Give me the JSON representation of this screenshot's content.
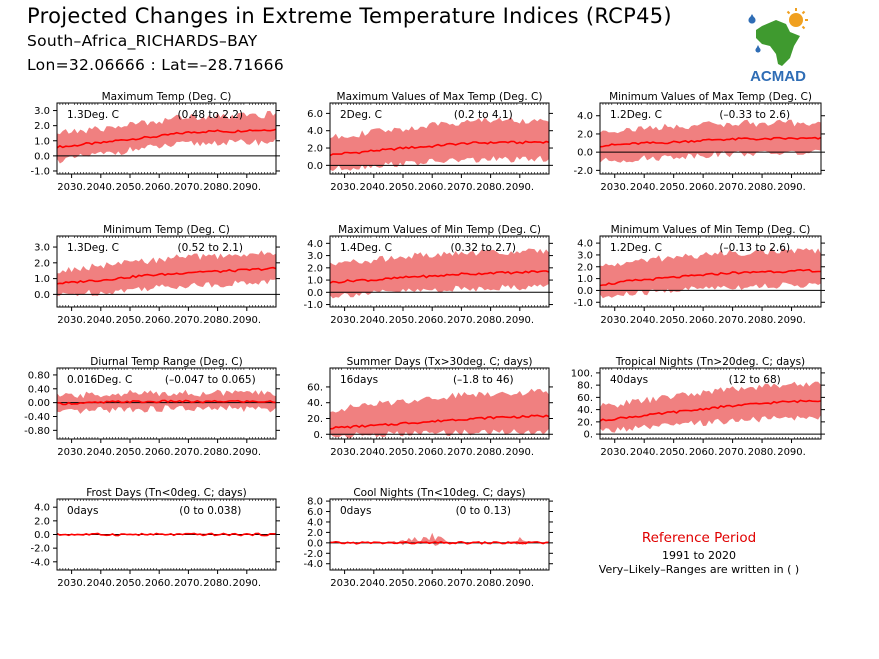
{
  "header": {
    "title": "Projected Changes in Extreme Temperature Indices (RCP45)",
    "station": "South–Africa_RICHARDS–BAY",
    "coords": "Lon=32.06666 : Lat=–28.71666"
  },
  "logo": {
    "text": "ACMAD",
    "icon": "africa-map-logo-icon"
  },
  "reference": {
    "title": "Reference Period",
    "years": "1991 to 2020",
    "note": "Very–Likely–Ranges are written in ( )"
  },
  "colors": {
    "band": "#f08080",
    "line": "#ff0000",
    "logo_text": "#2f6db5",
    "logo_green": "#3f9a2f",
    "logo_orange": "#f0a020",
    "reference_title": "#e00000"
  },
  "chart_data": [
    {
      "type": "area",
      "title": "Maximum Temp (Deg. C)",
      "value_label": "1.3Deg. C",
      "range_label": "(0.48 to 2.2)",
      "x_range": [
        2025,
        2100
      ],
      "x_ticks": [
        "2030.",
        "2040.",
        "2050.",
        "2060.",
        "2070.",
        "2080.",
        "2090."
      ],
      "ylim": [
        -1.2,
        3.5
      ],
      "y_ticks": [
        "3.0",
        "2.0",
        "1.0",
        "0.0",
        "-1.0"
      ],
      "y_tick_values": [
        3,
        2,
        1,
        0,
        -1
      ],
      "series": [
        {
          "name": "median",
          "x_start": 2025,
          "x_end": 2100,
          "values": [
            0.6,
            0.65,
            0.8,
            0.85,
            1.0,
            1.1,
            1.2,
            1.3,
            1.45,
            1.55,
            1.6,
            1.65,
            1.6,
            1.7,
            1.7,
            1.75
          ]
        },
        {
          "name": "range-low",
          "values": [
            -0.3,
            -0.2,
            0.0,
            0.1,
            0.2,
            0.4,
            0.5,
            0.6,
            0.7,
            0.8,
            0.8,
            0.9,
            0.85,
            0.9,
            0.9,
            0.95
          ]
        },
        {
          "name": "range-high",
          "values": [
            1.5,
            1.6,
            1.7,
            1.8,
            1.9,
            2.1,
            2.2,
            2.3,
            2.5,
            2.6,
            2.6,
            2.7,
            2.6,
            2.7,
            2.7,
            2.8
          ]
        }
      ]
    },
    {
      "type": "area",
      "title": "Maximum Values of Max Temp (Deg. C)",
      "value_label": "2Deg. C",
      "range_label": "(0.2 to 4.1)",
      "x_range": [
        2025,
        2100
      ],
      "x_ticks": [
        "2030.",
        "2040.",
        "2050.",
        "2060.",
        "2070.",
        "2080.",
        "2090."
      ],
      "ylim": [
        -1.0,
        7.2
      ],
      "y_ticks": [
        "6.0",
        "4.0",
        "2.0",
        "0.0"
      ],
      "y_tick_values": [
        6,
        4,
        2,
        0
      ],
      "series": [
        {
          "name": "median",
          "x_start": 2025,
          "x_end": 2100,
          "values": [
            1.2,
            1.4,
            1.5,
            1.7,
            1.8,
            2.0,
            2.1,
            2.2,
            2.4,
            2.5,
            2.6,
            2.6,
            2.7,
            2.6,
            2.7,
            2.7
          ]
        },
        {
          "name": "range-low",
          "values": [
            -0.5,
            -0.3,
            -0.2,
            0.0,
            0.1,
            0.2,
            0.3,
            0.4,
            0.5,
            0.6,
            0.6,
            0.7,
            0.7,
            0.6,
            0.7,
            0.8
          ]
        },
        {
          "name": "range-high",
          "values": [
            3.2,
            3.5,
            3.6,
            3.9,
            4.0,
            4.2,
            4.4,
            4.6,
            4.9,
            5.0,
            5.2,
            5.2,
            5.4,
            5.1,
            5.2,
            5.2
          ]
        }
      ]
    },
    {
      "type": "area",
      "title": "Minimum Values of Max Temp (Deg. C)",
      "value_label": "1.2Deg. C",
      "range_label": "(–0.33 to 2.6)",
      "x_range": [
        2025,
        2100
      ],
      "x_ticks": [
        "2030.",
        "2040.",
        "2050.",
        "2060.",
        "2070.",
        "2080.",
        "2090."
      ],
      "ylim": [
        -2.4,
        5.4
      ],
      "y_ticks": [
        "4.0",
        "2.0",
        "0.0",
        "-2.0"
      ],
      "y_tick_values": [
        4,
        2,
        0,
        -2
      ],
      "series": [
        {
          "name": "median",
          "x_start": 2025,
          "x_end": 2100,
          "values": [
            0.7,
            0.8,
            0.9,
            1.0,
            1.0,
            1.1,
            1.2,
            1.3,
            1.4,
            1.4,
            1.5,
            1.4,
            1.5,
            1.5,
            1.5,
            1.5
          ]
        },
        {
          "name": "range-low",
          "values": [
            -1.0,
            -0.9,
            -0.8,
            -0.7,
            -0.6,
            -0.5,
            -0.4,
            -0.3,
            -0.2,
            -0.2,
            -0.1,
            -0.2,
            -0.1,
            -0.1,
            -0.1,
            -0.1
          ]
        },
        {
          "name": "range-high",
          "values": [
            2.3,
            2.4,
            2.5,
            2.6,
            2.7,
            2.8,
            2.9,
            3.0,
            3.1,
            3.1,
            3.2,
            3.1,
            3.2,
            3.2,
            3.2,
            3.2
          ]
        }
      ]
    },
    {
      "type": "area",
      "title": "Minimum Temp (Deg. C)",
      "value_label": "1.3Deg. C",
      "range_label": "(0.52 to 2.1)",
      "x_range": [
        2025,
        2100
      ],
      "x_ticks": [
        "2030.",
        "2040.",
        "2050.",
        "2060.",
        "2070.",
        "2080.",
        "2090."
      ],
      "ylim": [
        -0.8,
        3.7
      ],
      "y_ticks": [
        "3.0",
        "2.0",
        "1.0",
        "0.0"
      ],
      "y_tick_values": [
        3,
        2,
        1,
        0
      ],
      "series": [
        {
          "name": "median",
          "x_start": 2025,
          "x_end": 2100,
          "values": [
            0.7,
            0.75,
            0.85,
            0.9,
            1.0,
            1.1,
            1.2,
            1.25,
            1.3,
            1.4,
            1.45,
            1.45,
            1.5,
            1.55,
            1.6,
            1.65
          ]
        },
        {
          "name": "range-low",
          "values": [
            -0.1,
            0.0,
            0.1,
            0.1,
            0.2,
            0.3,
            0.4,
            0.45,
            0.5,
            0.6,
            0.6,
            0.6,
            0.7,
            0.7,
            0.8,
            0.8
          ]
        },
        {
          "name": "range-high",
          "values": [
            1.4,
            1.6,
            1.7,
            1.8,
            1.9,
            2.0,
            2.1,
            2.2,
            2.3,
            2.4,
            2.4,
            2.4,
            2.5,
            2.5,
            2.6,
            2.6
          ]
        }
      ]
    },
    {
      "type": "area",
      "title": "Maximum Values of Min Temp (Deg. C)",
      "value_label": "1.4Deg. C",
      "range_label": "(0.32 to 2.7)",
      "x_range": [
        2025,
        2100
      ],
      "x_ticks": [
        "2030.",
        "2040.",
        "2050.",
        "2060.",
        "2070.",
        "2080.",
        "2090."
      ],
      "ylim": [
        -1.2,
        4.6
      ],
      "y_ticks": [
        "4.0",
        "3.0",
        "2.0",
        "1.0",
        "0.0",
        "-1.0"
      ],
      "y_tick_values": [
        4,
        3,
        2,
        1,
        0,
        -1
      ],
      "series": [
        {
          "name": "median",
          "x_start": 2025,
          "x_end": 2100,
          "values": [
            0.8,
            0.9,
            1.0,
            1.0,
            1.1,
            1.2,
            1.3,
            1.3,
            1.4,
            1.5,
            1.5,
            1.6,
            1.6,
            1.6,
            1.7,
            1.7
          ]
        },
        {
          "name": "range-low",
          "values": [
            -0.3,
            -0.2,
            -0.1,
            -0.1,
            0.0,
            0.1,
            0.1,
            0.2,
            0.2,
            0.3,
            0.3,
            0.4,
            0.4,
            0.4,
            0.5,
            0.5
          ]
        },
        {
          "name": "range-high",
          "values": [
            2.2,
            2.4,
            2.6,
            2.6,
            2.8,
            2.9,
            3.0,
            3.0,
            3.1,
            3.2,
            3.2,
            3.3,
            3.3,
            3.3,
            3.4,
            3.4
          ]
        }
      ]
    },
    {
      "type": "area",
      "title": "Minimum Values of Min Temp (Deg. C)",
      "value_label": "1.2Deg. C",
      "range_label": "(–0.13 to 2.6)",
      "x_range": [
        2025,
        2100
      ],
      "x_ticks": [
        "2030.",
        "2040.",
        "2050.",
        "2060.",
        "2070.",
        "2080.",
        "2090."
      ],
      "ylim": [
        -1.4,
        4.6
      ],
      "y_ticks": [
        "4.0",
        "3.0",
        "2.0",
        "1.0",
        "0.0",
        "-1.0"
      ],
      "y_tick_values": [
        4,
        3,
        2,
        1,
        0,
        -1
      ],
      "series": [
        {
          "name": "median",
          "x_start": 2025,
          "x_end": 2100,
          "values": [
            0.5,
            0.6,
            0.8,
            0.9,
            1.0,
            1.1,
            1.2,
            1.3,
            1.4,
            1.5,
            1.5,
            1.6,
            1.6,
            1.6,
            1.7,
            1.6
          ]
        },
        {
          "name": "range-low",
          "values": [
            -0.6,
            -0.5,
            -0.3,
            -0.2,
            -0.1,
            0.0,
            0.1,
            0.2,
            0.3,
            0.3,
            0.3,
            0.4,
            0.4,
            0.4,
            0.5,
            0.4
          ]
        },
        {
          "name": "range-high",
          "values": [
            2.0,
            2.2,
            2.4,
            2.5,
            2.7,
            2.8,
            2.9,
            3.0,
            3.1,
            3.2,
            3.2,
            3.3,
            3.3,
            3.3,
            3.4,
            3.3
          ]
        }
      ]
    },
    {
      "type": "area",
      "title": "Diurnal Temp Range (Deg. C)",
      "value_label": "0.016Deg. C",
      "range_label": "(–0.047 to 0.065)",
      "x_range": [
        2025,
        2100
      ],
      "x_ticks": [
        "2030.",
        "2040.",
        "2050.",
        "2060.",
        "2070.",
        "2080.",
        "2090."
      ],
      "ylim": [
        -1.05,
        1.0
      ],
      "y_ticks": [
        "0.80",
        "0.40",
        "0.00",
        "-0.40",
        "-0.80"
      ],
      "y_tick_values": [
        0.8,
        0.4,
        0,
        -0.4,
        -0.8
      ],
      "series": [
        {
          "name": "median",
          "x_start": 2025,
          "x_end": 2100,
          "values": [
            -0.03,
            -0.02,
            -0.01,
            0.0,
            0.02,
            0.03,
            0.02,
            0.03,
            0.04,
            0.03,
            0.02,
            0.03,
            0.04,
            0.03,
            0.03,
            0.02
          ]
        },
        {
          "name": "range-low",
          "values": [
            -0.3,
            -0.28,
            -0.25,
            -0.22,
            -0.2,
            -0.18,
            -0.2,
            -0.18,
            -0.16,
            -0.18,
            -0.2,
            -0.18,
            -0.16,
            -0.18,
            -0.18,
            -0.22
          ]
        },
        {
          "name": "range-high",
          "values": [
            0.18,
            0.2,
            0.22,
            0.24,
            0.26,
            0.28,
            0.26,
            0.28,
            0.3,
            0.28,
            0.26,
            0.28,
            0.3,
            0.28,
            0.28,
            0.24
          ]
        }
      ]
    },
    {
      "type": "area",
      "title": "Summer Days (Tx>30deg. C; days)",
      "value_label": "16days",
      "range_label": "(–1.8 to 46)",
      "x_range": [
        2025,
        2100
      ],
      "x_ticks": [
        "2030.",
        "2040.",
        "2050.",
        "2060.",
        "2070.",
        "2080.",
        "2090."
      ],
      "ylim": [
        -6,
        84
      ],
      "y_ticks": [
        "60.",
        "40.",
        "20.",
        "0."
      ],
      "y_tick_values": [
        60,
        40,
        20,
        0
      ],
      "series": [
        {
          "name": "median",
          "x_start": 2025,
          "x_end": 2100,
          "values": [
            8,
            9,
            10,
            11,
            12,
            14,
            15,
            16,
            18,
            19,
            20,
            21,
            22,
            22,
            23,
            23
          ]
        },
        {
          "name": "range-low",
          "values": [
            -2,
            -2,
            -1,
            -1,
            0,
            0,
            1,
            1,
            2,
            2,
            2,
            3,
            3,
            3,
            3,
            3
          ]
        },
        {
          "name": "range-high",
          "values": [
            30,
            33,
            36,
            38,
            40,
            42,
            44,
            46,
            48,
            50,
            51,
            52,
            53,
            53,
            54,
            54
          ]
        }
      ]
    },
    {
      "type": "area",
      "title": "Tropical Nights (Tn>20deg. C; days)",
      "value_label": "40days",
      "range_label": "(12 to 68)",
      "x_range": [
        2025,
        2100
      ],
      "x_ticks": [
        "2030.",
        "2040.",
        "2050.",
        "2060.",
        "2070.",
        "2080.",
        "2090."
      ],
      "ylim": [
        -8,
        108
      ],
      "y_ticks": [
        "100.",
        "80.",
        "60.",
        "40.",
        "20.",
        "0."
      ],
      "y_tick_values": [
        100,
        80,
        60,
        40,
        20,
        0
      ],
      "series": [
        {
          "name": "median",
          "x_start": 2025,
          "x_end": 2100,
          "values": [
            22,
            25,
            28,
            30,
            33,
            36,
            38,
            41,
            44,
            46,
            48,
            50,
            52,
            53,
            54,
            55
          ]
        },
        {
          "name": "range-low",
          "values": [
            5,
            7,
            9,
            10,
            12,
            14,
            16,
            18,
            20,
            22,
            23,
            24,
            25,
            26,
            27,
            28
          ]
        },
        {
          "name": "range-high",
          "values": [
            45,
            48,
            52,
            55,
            58,
            62,
            65,
            68,
            71,
            74,
            76,
            78,
            80,
            81,
            82,
            83
          ]
        }
      ]
    },
    {
      "type": "area",
      "title": "Frost Days (Tn<0deg. C; days)",
      "value_label": "0days",
      "range_label": "(0 to 0.038)",
      "x_range": [
        2025,
        2100
      ],
      "x_ticks": [
        "2030.",
        "2040.",
        "2050.",
        "2060.",
        "2070.",
        "2080.",
        "2090."
      ],
      "ylim": [
        -5.2,
        5.2
      ],
      "y_ticks": [
        "4.0",
        "2.0",
        "0.0",
        "-2.0",
        "-4.0"
      ],
      "y_tick_values": [
        4,
        2,
        0,
        -2,
        -4
      ],
      "series": [
        {
          "name": "median",
          "x_start": 2025,
          "x_end": 2100,
          "values": [
            0,
            0,
            0,
            0,
            0,
            0,
            0,
            0,
            0,
            0,
            0,
            0,
            0,
            0,
            0,
            0
          ]
        },
        {
          "name": "range-low",
          "values": [
            0,
            0,
            0,
            0,
            0,
            0,
            0,
            0,
            0,
            0,
            0,
            0,
            0,
            0,
            0,
            0
          ]
        },
        {
          "name": "range-high",
          "values": [
            0.05,
            0.05,
            0.12,
            0.05,
            0.05,
            0.05,
            0.05,
            0.05,
            0.05,
            0.05,
            0.15,
            0.05,
            0.05,
            0.05,
            0.05,
            0.05
          ]
        }
      ]
    },
    {
      "type": "area",
      "title": "Cool Nights (Tn<10deg. C; days)",
      "value_label": "0days",
      "range_label": "(0 to 0.13)",
      "x_range": [
        2025,
        2100
      ],
      "x_ticks": [
        "2030.",
        "2040.",
        "2050.",
        "2060.",
        "2070.",
        "2080.",
        "2090."
      ],
      "ylim": [
        -5.2,
        8.4
      ],
      "y_ticks": [
        "8.0",
        "6.0",
        "4.0",
        "2.0",
        "0.0",
        "-2.0",
        "-4.0"
      ],
      "y_tick_values": [
        8,
        6,
        4,
        2,
        0,
        -2,
        -4
      ],
      "series": [
        {
          "name": "median",
          "x_start": 2025,
          "x_end": 2100,
          "values": [
            0,
            0,
            0,
            0,
            0,
            0,
            0,
            0,
            0,
            0,
            0,
            0,
            0,
            0,
            0,
            0
          ]
        },
        {
          "name": "range-low",
          "values": [
            0,
            0,
            0,
            0,
            0,
            0,
            0,
            0,
            0,
            0,
            0,
            0,
            0,
            0,
            0,
            0
          ]
        },
        {
          "name": "range-high",
          "values": [
            0.2,
            0.1,
            0.1,
            0.1,
            0.1,
            0.8,
            0.4,
            1.3,
            0.2,
            0.1,
            0.1,
            0.1,
            0.1,
            0.5,
            0.1,
            0.1
          ]
        }
      ]
    }
  ]
}
